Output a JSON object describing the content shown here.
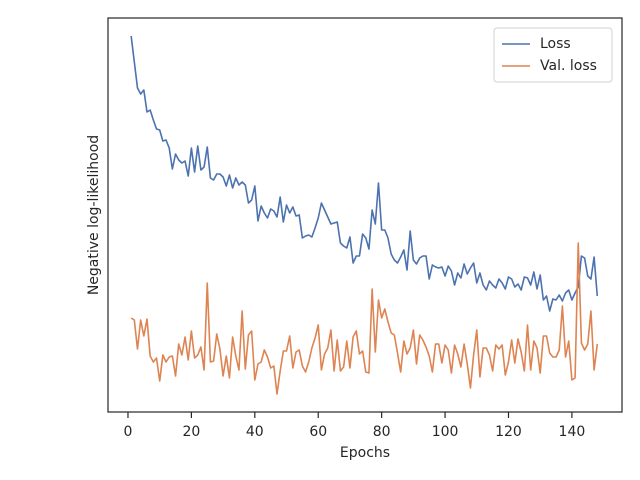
{
  "chart_data": {
    "type": "line",
    "xlabel": "Epochs",
    "ylabel": "Negative log-likelihood",
    "x": [
      1,
      2,
      3,
      4,
      5,
      6,
      7,
      8,
      9,
      10,
      11,
      12,
      13,
      14,
      15,
      16,
      17,
      18,
      19,
      20,
      21,
      22,
      23,
      24,
      25,
      26,
      27,
      28,
      29,
      30,
      31,
      32,
      33,
      34,
      35,
      36,
      37,
      38,
      39,
      40,
      41,
      42,
      43,
      44,
      45,
      46,
      47,
      48,
      49,
      50,
      51,
      52,
      53,
      54,
      55,
      56,
      57,
      58,
      59,
      60,
      61,
      62,
      63,
      64,
      65,
      66,
      67,
      68,
      69,
      70,
      71,
      72,
      73,
      74,
      75,
      76,
      77,
      78,
      79,
      80,
      81,
      82,
      83,
      84,
      85,
      86,
      87,
      88,
      89,
      90,
      91,
      92,
      93,
      94,
      95,
      96,
      97,
      98,
      99,
      100,
      101,
      102,
      103,
      104,
      105,
      106,
      107,
      108,
      109,
      110,
      111,
      112,
      113,
      114,
      115,
      116,
      117,
      118,
      119,
      120,
      121,
      122,
      123,
      124,
      125,
      126,
      127,
      128,
      129,
      130,
      131,
      132,
      133,
      134,
      135,
      136,
      137,
      138,
      139,
      140,
      141,
      142,
      143,
      144,
      145,
      146,
      147,
      148
    ],
    "series": [
      {
        "name": "Loss",
        "color": "#4c72b0",
        "values": [
          376,
          350,
          324,
          318,
          322,
          300,
          302,
          292,
          283,
          282,
          271,
          272,
          264,
          243,
          258,
          252,
          249,
          251,
          236,
          264,
          240,
          266,
          242,
          245,
          265,
          234,
          232,
          238,
          238,
          235,
          226,
          237,
          224,
          234,
          227,
          230,
          227,
          209,
          212,
          226,
          191,
          206,
          199,
          194,
          203,
          201,
          195,
          215,
          190,
          207,
          199,
          205,
          196,
          197,
          174,
          176,
          177,
          175,
          184,
          194,
          209,
          202,
          195,
          188,
          189,
          190,
          169,
          166,
          164,
          175,
          149,
          156,
          156,
          178,
          174,
          163,
          202,
          188,
          229,
          182,
          182,
          174,
          158,
          152,
          149,
          155,
          162,
          142,
          181,
          152,
          148,
          154,
          156,
          156,
          133,
          147,
          145,
          144,
          145,
          136,
          146,
          141,
          127,
          139,
          134,
          148,
          138,
          144,
          149,
          129,
          139,
          127,
          122,
          131,
          127,
          124,
          133,
          129,
          123,
          135,
          133,
          125,
          128,
          122,
          135,
          134,
          127,
          140,
          123,
          137,
          112,
          116,
          101,
          113,
          112,
          117,
          111,
          119,
          122,
          112,
          119,
          125,
          156,
          154,
          136,
          133,
          155,
          116
        ]
      },
      {
        "name": "Val. loss",
        "color": "#dd8452",
        "values": [
          94,
          92,
          63,
          92,
          76,
          93,
          56,
          50,
          54,
          31,
          57,
          50,
          55,
          56,
          36,
          68,
          57,
          75,
          52,
          81,
          54,
          57,
          65,
          42,
          129,
          50,
          51,
          78,
          63,
          36,
          56,
          34,
          75,
          56,
          42,
          101,
          43,
          77,
          81,
          32,
          48,
          50,
          62,
          55,
          44,
          46,
          18,
          41,
          61,
          61,
          76,
          44,
          60,
          62,
          46,
          40,
          50,
          64,
          74,
          87,
          42,
          58,
          64,
          82,
          41,
          72,
          41,
          45,
          71,
          44,
          75,
          81,
          58,
          61,
          40,
          39,
          123,
          60,
          112,
          94,
          103,
          90,
          79,
          77,
          59,
          40,
          71,
          58,
          64,
          82,
          48,
          77,
          72,
          65,
          56,
          40,
          68,
          68,
          49,
          67,
          62,
          39,
          67,
          58,
          45,
          68,
          48,
          24,
          57,
          82,
          35,
          64,
          64,
          57,
          41,
          67,
          63,
          67,
          37,
          50,
          72,
          49,
          73,
          60,
          41,
          87,
          42,
          71,
          64,
          39,
          76,
          76,
          59,
          55,
          55,
          62,
          106,
          55,
          71,
          32,
          34,
          169,
          69,
          62,
          68,
          101,
          42,
          68
        ]
      }
    ],
    "xlim": [
      -6.3,
      155.8
    ],
    "ylim": [
      0,
      394
    ],
    "xticks": [
      0,
      20,
      40,
      60,
      80,
      100,
      120,
      140
    ],
    "legend": "upper right"
  }
}
